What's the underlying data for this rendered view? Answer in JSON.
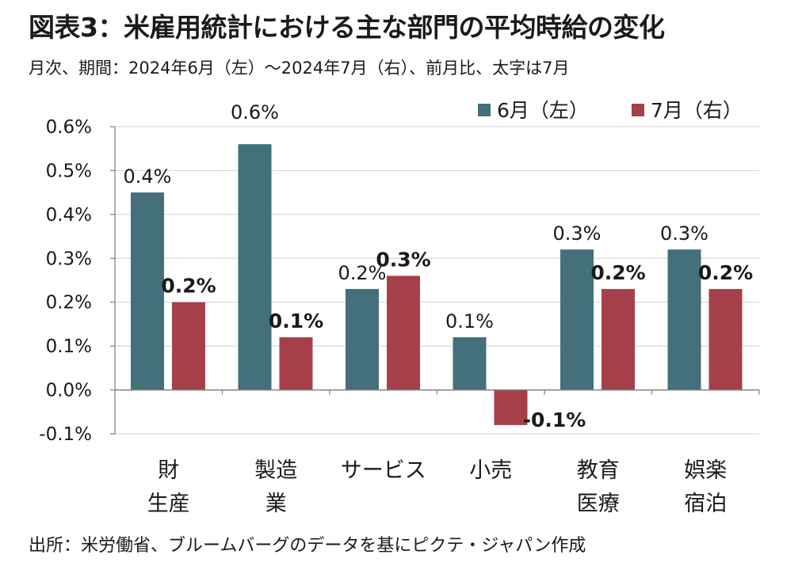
{
  "header": {
    "title": "図表3：米雇用統計における主な部門の平均時給の変化",
    "subtitle": "月次、期間：2024年6月（左）～2024年7月（右）、前月比、太字は7月"
  },
  "footer": {
    "source": "出所：米労働省、ブルームバーグのデータを基にピクテ・ジャパン作成"
  },
  "colors": {
    "june": "#43707A",
    "july": "#A5404A",
    "grid": "#d9d9d9",
    "axis": "#7f7f7f"
  },
  "chart_data": {
    "type": "bar",
    "categories": [
      [
        "財",
        "生産"
      ],
      [
        "製造",
        "業"
      ],
      [
        "サービス"
      ],
      [
        "小売"
      ],
      [
        "教育",
        "医療"
      ],
      [
        "娯楽",
        "宿泊"
      ]
    ],
    "series": [
      {
        "name": "6月（左）",
        "values": [
          0.45,
          0.56,
          0.23,
          0.12,
          0.32,
          0.32
        ],
        "labels": [
          "0.4%",
          "0.6%",
          "0.2%",
          "0.1%",
          "0.3%",
          "0.3%"
        ]
      },
      {
        "name": "7月（右）",
        "values": [
          0.2,
          0.12,
          0.26,
          -0.08,
          0.23,
          0.23
        ],
        "labels": [
          "0.2%",
          "0.1%",
          "0.3%",
          "-0.1%",
          "0.2%",
          "0.2%"
        ]
      }
    ],
    "ylim": [
      -0.1,
      0.6
    ],
    "yticks": [
      "0.6%",
      "0.5%",
      "0.4%",
      "0.3%",
      "0.2%",
      "0.1%",
      "0.0%",
      "-0.1%"
    ],
    "ytick_values": [
      0.6,
      0.5,
      0.4,
      0.3,
      0.2,
      0.1,
      0.0,
      -0.1
    ],
    "grid": true,
    "legend": "top-right"
  }
}
